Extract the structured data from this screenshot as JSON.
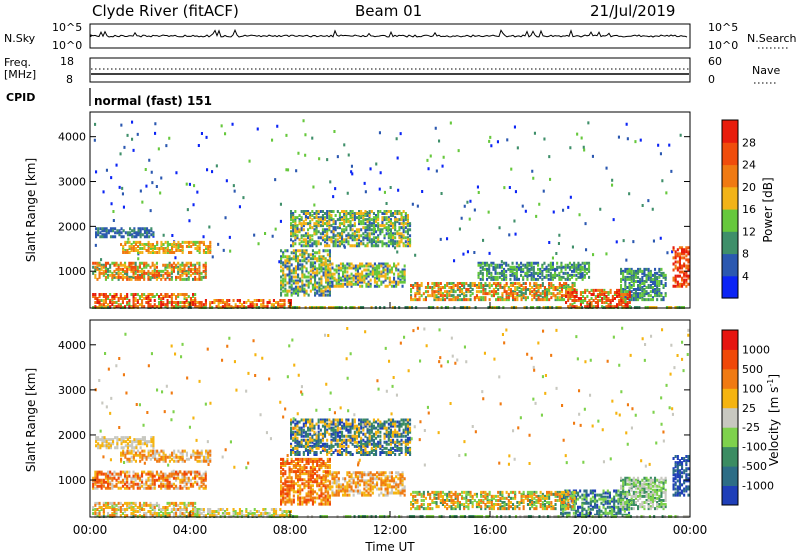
{
  "header": {
    "site": "Clyde River (fitACF)",
    "beam": "Beam 01",
    "date": "21/Jul/2019"
  },
  "strip_noise": {
    "left_label": "N.Sky",
    "right_label": "N.Search",
    "left_ticks": [
      "10^5",
      "10^0"
    ],
    "right_ticks": [
      "10^5",
      "10^0"
    ]
  },
  "strip_freq": {
    "left_label_1": "Freq.",
    "left_label_2": "[MHz]",
    "left_ticks": [
      "18",
      "8"
    ],
    "right_label": "Nave",
    "right_ticks": [
      "60",
      "0"
    ]
  },
  "strip_cpid": {
    "label": "CPID",
    "value": "normal (fast) 151"
  },
  "colors": {
    "power_scale": [
      "#0b24f5",
      "#2b58b0",
      "#3f8f6a",
      "#66c83c",
      "#f2b318",
      "#f07a12",
      "#f04d0c",
      "#e81c0c"
    ],
    "velocity_scale": [
      "#1f3fb8",
      "#2d6d86",
      "#3b8c62",
      "#7ed24c",
      "#c8c8c0",
      "#f5b410",
      "#f07a12",
      "#f04808",
      "#e61410"
    ]
  },
  "chart_data": [
    {
      "type": "heatmap",
      "name": "power-panel",
      "ylabel": "Slant Range [km]",
      "y_ticks": [
        1000,
        2000,
        3000,
        4000
      ],
      "ylim": [
        180,
        4550
      ],
      "colorbar_label": "Power [dB]",
      "colorbar_ticks": [
        "4",
        "8",
        "12",
        "16",
        "20",
        "24",
        "28"
      ]
    },
    {
      "type": "heatmap",
      "name": "velocity-panel",
      "ylabel": "Slant Range [km]",
      "y_ticks": [
        1000,
        2000,
        3000,
        4000
      ],
      "ylim": [
        180,
        4550
      ],
      "colorbar_label": "Velocity",
      "colorbar_unit": "[m s",
      "colorbar_unit_sup": "-1",
      "colorbar_unit_end": "]",
      "colorbar_ticks": [
        "1000",
        "500",
        "100",
        "25",
        "-25",
        "-100",
        "-500",
        "-1000"
      ],
      "xlabel": "Time UT",
      "x_ticks": [
        "00:00",
        "04:00",
        "08:00",
        "12:00",
        "16:00",
        "20:00",
        "00:00"
      ]
    }
  ]
}
